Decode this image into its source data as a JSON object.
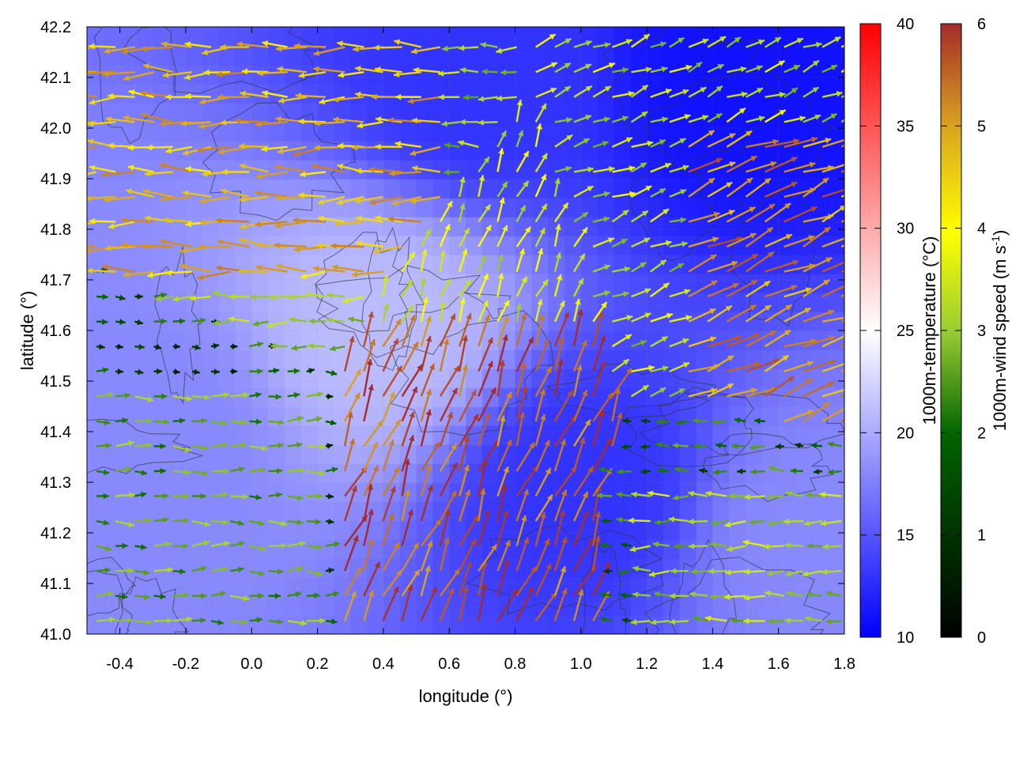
{
  "chart_data": {
    "type": "heatmap",
    "title": "",
    "xlabel": "longitude (°)",
    "ylabel": "latitude (°)",
    "xlim": [
      -0.5,
      1.8
    ],
    "ylim": [
      41.0,
      42.2
    ],
    "x_ticks": [
      "-0.4",
      "-0.2",
      "0.0",
      "0.2",
      "0.4",
      "0.6",
      "0.8",
      "1.0",
      "1.2",
      "1.4",
      "1.6",
      "1.8"
    ],
    "y_ticks": [
      "41.0",
      "41.1",
      "41.2",
      "41.3",
      "41.4",
      "41.5",
      "41.6",
      "41.7",
      "41.8",
      "41.9",
      "42.0",
      "42.1",
      "42.2"
    ],
    "grid": true,
    "temperature_colorbar": {
      "label": "1000m-temperature (°C)",
      "range": [
        10,
        40
      ],
      "ticks": [
        "10",
        "15",
        "20",
        "25",
        "30",
        "35",
        "40"
      ],
      "colors": [
        "#0000ff",
        "#ffffff",
        "#ff0000"
      ]
    },
    "wind_colorbar": {
      "label_main": "1000m-wind speed (m s",
      "label_sup": "-1",
      "label_end": ")",
      "range": [
        0,
        6
      ],
      "ticks": [
        "0",
        "1",
        "2",
        "3",
        "4",
        "5",
        "6"
      ],
      "colors": [
        "#000000",
        "#006400",
        "#9acd32",
        "#ffff00",
        "#daa520",
        "#a52a2a"
      ]
    },
    "temperature_field_description_regions": [
      {
        "lon": 0.4,
        "lat": 41.6,
        "temp": 21
      },
      {
        "lon": 0.7,
        "lat": 42.1,
        "temp": 13
      },
      {
        "lon": 1.5,
        "lat": 42.1,
        "temp": 11
      },
      {
        "lon": 1.0,
        "lat": 41.3,
        "temp": 13
      },
      {
        "lon": -0.3,
        "lat": 41.4,
        "temp": 18
      },
      {
        "lon": 1.7,
        "lat": 41.2,
        "temp": 18
      }
    ],
    "wind_flow_regions": [
      {
        "name": "northwest sector",
        "lon": [
          -0.5,
          0.6
        ],
        "lat": [
          41.7,
          42.2
        ],
        "u_dir": "west",
        "speed": 4.5
      },
      {
        "name": "east sector",
        "lon": [
          1.3,
          1.8
        ],
        "lat": [
          41.4,
          42.0
        ],
        "u_dir": "east-northeast",
        "speed": 5
      },
      {
        "name": "south-central sector",
        "lon": [
          0.2,
          1.1
        ],
        "lat": [
          41.0,
          41.6
        ],
        "u_dir": "north-northeast",
        "speed": 5.5
      },
      {
        "name": "southwest sector",
        "lon": [
          -0.5,
          0.2
        ],
        "lat": [
          41.0,
          41.5
        ],
        "u_dir": "east",
        "speed": 2
      },
      {
        "name": "southeast sector",
        "lon": [
          1.2,
          1.8
        ],
        "lat": [
          41.0,
          41.3
        ],
        "u_dir": "west",
        "speed": 2.5
      }
    ]
  }
}
